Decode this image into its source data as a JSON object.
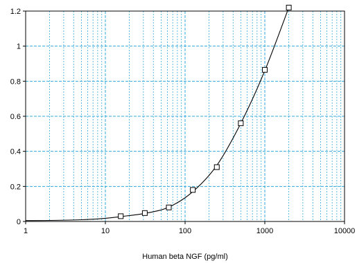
{
  "chart_data": {
    "type": "scatter",
    "xscale": "log",
    "xlim": [
      1,
      10000
    ],
    "ylim": [
      0,
      1.2
    ],
    "xlabel": "Human beta NGF (pg/ml)",
    "ylabel": "",
    "title": "",
    "x_ticks": [
      "1",
      "10",
      "100",
      "1000",
      "10000"
    ],
    "y_ticks": [
      "0",
      "0.2",
      "0.4",
      "0.6",
      "0.8",
      "1",
      "1.2"
    ],
    "x_tick_values": [
      1,
      10,
      100,
      1000,
      10000
    ],
    "y_tick_values": [
      0,
      0.2,
      0.4,
      0.6,
      0.8,
      1,
      1.2
    ],
    "grid": true,
    "legend": "none",
    "series": [
      {
        "marker": "square",
        "x": [
          15.6,
          31.25,
          62.5,
          125,
          250,
          500,
          1000,
          2000
        ],
        "y": [
          0.03,
          0.048,
          0.08,
          0.18,
          0.31,
          0.56,
          0.865,
          1.22
        ]
      }
    ],
    "fit_curve": {
      "x": [
        1,
        2,
        5,
        10,
        15.6,
        31.25,
        62.5,
        125,
        250,
        500,
        1000,
        2000
      ],
      "y": [
        0.005,
        0.006,
        0.01,
        0.018,
        0.028,
        0.046,
        0.082,
        0.17,
        0.32,
        0.56,
        0.86,
        1.22
      ]
    },
    "colors": {
      "grid": "#33aadd",
      "axis": "#000000",
      "curve": "#000000",
      "marker": "#000000"
    }
  }
}
